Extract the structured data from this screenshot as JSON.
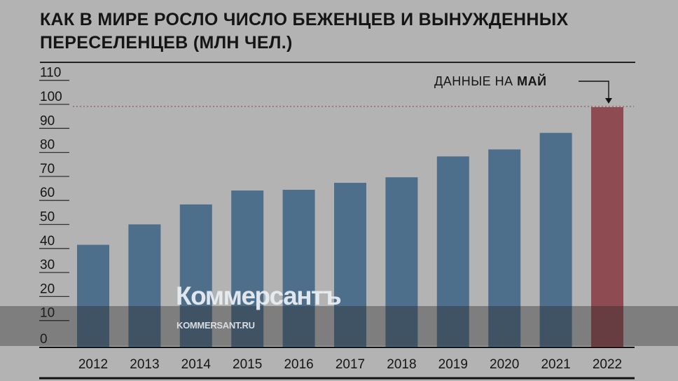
{
  "title": "КАК В МИРЕ РОСЛО ЧИСЛО БЕЖЕНЦЕВ И ВЫНУЖДЕННЫХ ПЕРЕСЕЛЕНЦЕВ (МЛН ЧЕЛ.)",
  "annotation": {
    "prefix": "ДАННЫЕ НА",
    "bold": "МАЙ"
  },
  "watermark": {
    "logo": "Коммерсантъ",
    "url": "KOMMERSANT.RU"
  },
  "chart_data": {
    "type": "bar",
    "title": "КАК В МИРЕ РОСЛО ЧИСЛО БЕЖЕНЦЕВ И ВЫНУЖДЕННЫХ ПЕРЕСЕЛЕНЦЕВ (МЛН ЧЕЛ.)",
    "xlabel": "",
    "ylabel": "млн чел.",
    "ylim": [
      0,
      110
    ],
    "yticks": [
      "0",
      "10",
      "20",
      "30",
      "40",
      "50",
      "60",
      "70",
      "80",
      "90",
      "100",
      "110"
    ],
    "categories": [
      "2012",
      "2013",
      "2014",
      "2015",
      "2016",
      "2017",
      "2018",
      "2019",
      "2020",
      "2021",
      "2022"
    ],
    "values": [
      42.7,
      51.2,
      59.5,
      65.3,
      65.6,
      68.5,
      70.8,
      79.5,
      82.4,
      89.3,
      100
    ],
    "highlight_index": 10,
    "reference_line": 100,
    "colors": {
      "bar": "#4e6f8c",
      "highlight": "#8f4b52",
      "refline": "#8a5a5f"
    }
  }
}
